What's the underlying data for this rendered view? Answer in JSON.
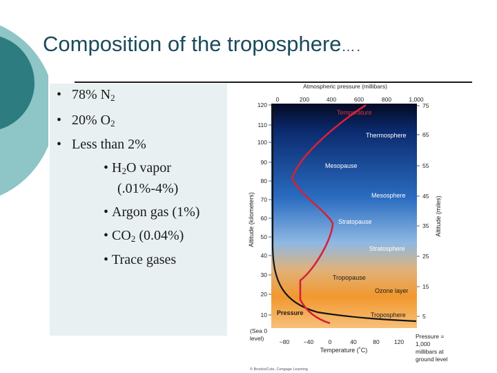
{
  "slide": {
    "title": "Composition of the troposphere",
    "title_dots": "….",
    "bullets": [
      {
        "text": "78% N",
        "sub": "2",
        "after": ""
      },
      {
        "text": "20% O",
        "sub": "2",
        "after": ""
      },
      {
        "text": "Less than 2%",
        "sub": "",
        "after": ""
      }
    ],
    "subbullets": [
      {
        "pre": "H",
        "sub": "2",
        "post": "O vapor"
      },
      {
        "pre": "(.01%-4%)",
        "sub": "",
        "post": ""
      },
      {
        "pre": "Argon gas (1%)",
        "sub": "",
        "post": ""
      },
      {
        "pre": "CO",
        "sub": "2",
        "post": " (0.04%)"
      },
      {
        "pre": "Trace gases",
        "sub": "",
        "post": ""
      }
    ]
  },
  "figure": {
    "top_axis_title": "Atmospheric pressure (millibars)",
    "top_ticks": [
      "0",
      "200",
      "400",
      "600",
      "800",
      "1,000"
    ],
    "left_axis_title": "Altitude (kilometers)",
    "left_ticks": [
      "120",
      "110",
      "100",
      "90",
      "80",
      "70",
      "60",
      "50",
      "40",
      "30",
      "20",
      "10"
    ],
    "sea_label": [
      "(Sea 0",
      "level)"
    ],
    "right_axis_title": "Altitude (miles)",
    "right_ticks": [
      "75",
      "65",
      "55",
      "45",
      "35",
      "25",
      "15",
      "5"
    ],
    "bottom_axis_title": "Temperature (˚C)",
    "bottom_ticks": [
      "−80",
      "−40",
      "0",
      "40",
      "80",
      "120"
    ],
    "layers": {
      "temperature": "Temperature",
      "thermosphere": "Thermosphere",
      "mesopause": "Mesopause",
      "mesosphere": "Mesosphere",
      "stratopause": "Stratopause",
      "stratosphere": "Stratosphere",
      "tropopause": "Tropopause",
      "ozone": "Ozone layer",
      "pressure": "Pressure",
      "troposphere": "Troposphere"
    },
    "pressure_note": [
      "Pressure =",
      "1,000",
      "millibars at",
      "ground level"
    ],
    "credit": "© Brooks/Cole, Cengage Learning",
    "colors": {
      "temperature_line": "#d4213a",
      "pressure_line": "#151515",
      "accent": "#1e6a78"
    }
  }
}
